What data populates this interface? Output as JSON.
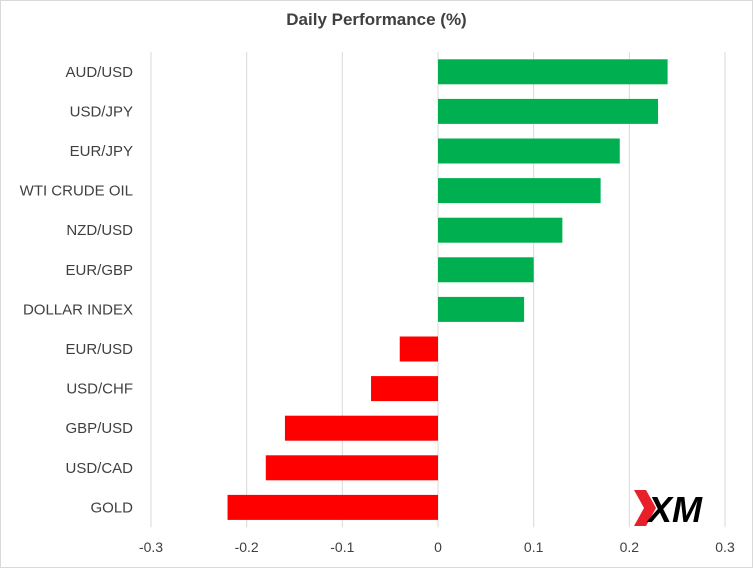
{
  "chart_data": {
    "type": "bar",
    "orientation": "horizontal",
    "title": "Daily Performance (%)",
    "xlabel": "",
    "ylabel": "",
    "categories": [
      "AUD/USD",
      "USD/JPY",
      "EUR/JPY",
      "WTI CRUDE OIL",
      "NZD/USD",
      "EUR/GBP",
      "DOLLAR INDEX",
      "EUR/USD",
      "USD/CHF",
      "GBP/USD",
      "USD/CAD",
      "GOLD"
    ],
    "values": [
      0.24,
      0.23,
      0.19,
      0.17,
      0.13,
      0.1,
      0.09,
      -0.04,
      -0.07,
      -0.16,
      -0.18,
      -0.22
    ],
    "xlim": [
      -0.3,
      0.3
    ],
    "xticks": [
      -0.3,
      -0.2,
      -0.1,
      0,
      0.1,
      0.2,
      0.3
    ],
    "xtick_labels": [
      "-0.3",
      "-0.2",
      "-0.1",
      "0",
      "0.1",
      "0.2",
      "0.3"
    ],
    "grid": "vertical",
    "legend": "none",
    "colors": {
      "positive": "#00b050",
      "negative": "#ff0000",
      "grid": "#d9d9d9",
      "text": "#404040"
    }
  },
  "logo": {
    "text": "XM",
    "colors": {
      "mark": "#e8202a",
      "text": "#000000"
    }
  }
}
